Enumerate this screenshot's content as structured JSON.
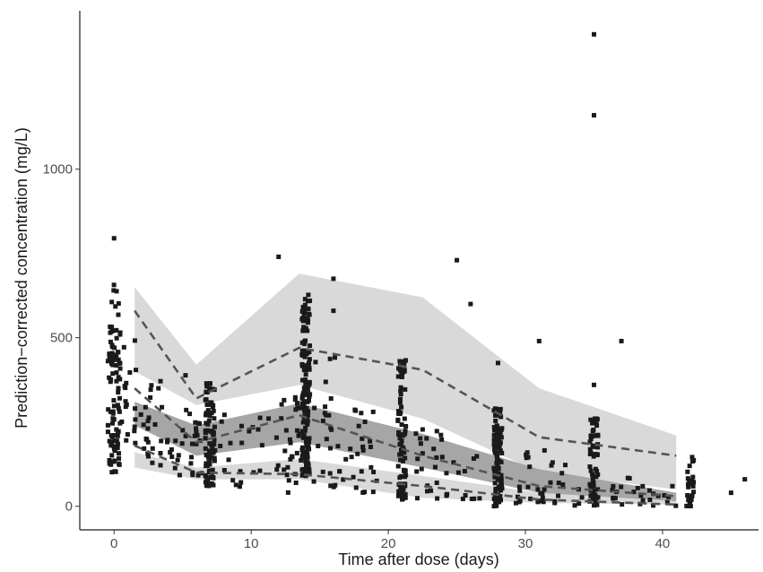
{
  "chart_data": {
    "type": "scatter",
    "xlabel": "Time after dose (days)",
    "ylabel": "Prediction−corrected concentration (mg/L)",
    "xlim": [
      -2.5,
      47
    ],
    "ylim": [
      -70,
      1470
    ],
    "x_ticks": [
      0,
      10,
      20,
      30,
      40
    ],
    "y_ticks": [
      0,
      500,
      1000
    ],
    "grid": false,
    "legend": "none",
    "colors": {
      "points": "#1a1a1a",
      "outer_band": "#d9d9d9",
      "median_band": "#a6a6a6",
      "lines": "#555555"
    },
    "bins_x": [
      1.5,
      6,
      13.5,
      22.5,
      31,
      41
    ],
    "bands": {
      "upper_ci": {
        "low": [
          400,
          300,
          360,
          260,
          100,
          50
        ],
        "high": [
          650,
          420,
          690,
          620,
          350,
          210
        ]
      },
      "median_ci": {
        "low": [
          240,
          150,
          190,
          115,
          40,
          15
        ],
        "high": [
          310,
          240,
          305,
          215,
          110,
          40
        ]
      },
      "lower_ci": {
        "low": [
          115,
          80,
          80,
          25,
          10,
          5
        ],
        "high": [
          160,
          115,
          140,
          90,
          40,
          25
        ]
      }
    },
    "observed_percentiles": {
      "p95": [
        580,
        320,
        470,
        405,
        205,
        150
      ],
      "p50": [
        350,
        190,
        270,
        150,
        60,
        30
      ],
      "p05": [
        180,
        100,
        95,
        60,
        20,
        5
      ]
    },
    "outliers": [
      [
        0,
        795
      ],
      [
        12,
        740
      ],
      [
        16,
        675
      ],
      [
        16,
        580
      ],
      [
        25,
        730
      ],
      [
        26,
        600
      ],
      [
        28,
        425
      ],
      [
        31,
        490
      ],
      [
        35,
        1400
      ],
      [
        35,
        1160
      ],
      [
        35,
        360
      ],
      [
        37,
        490
      ],
      [
        45,
        40
      ],
      [
        46,
        80
      ]
    ],
    "clusters": [
      {
        "x": 0,
        "count": 95,
        "lo": 100,
        "hi": 660,
        "spread": 0.45
      },
      {
        "x": 1,
        "count": 18,
        "lo": 190,
        "hi": 520,
        "spread": 0.6
      },
      {
        "x": 2,
        "count": 12,
        "lo": 170,
        "hi": 310,
        "spread": 0.6
      },
      {
        "x": 3,
        "count": 12,
        "lo": 120,
        "hi": 440,
        "spread": 0.6
      },
      {
        "x": 4,
        "count": 10,
        "lo": 90,
        "hi": 230,
        "spread": 0.8
      },
      {
        "x": 5,
        "count": 8,
        "lo": 90,
        "hi": 400,
        "spread": 0.6
      },
      {
        "x": 6,
        "count": 16,
        "lo": 90,
        "hi": 250,
        "spread": 0.4
      },
      {
        "x": 7,
        "count": 85,
        "lo": 60,
        "hi": 380,
        "spread": 0.35
      },
      {
        "x": 8.5,
        "count": 14,
        "lo": 50,
        "hi": 300,
        "spread": 1.2
      },
      {
        "x": 11,
        "count": 12,
        "lo": 80,
        "hi": 290,
        "spread": 1.2
      },
      {
        "x": 13,
        "count": 30,
        "lo": 40,
        "hi": 330,
        "spread": 0.8
      },
      {
        "x": 14,
        "count": 150,
        "lo": 90,
        "hi": 630,
        "spread": 0.3
      },
      {
        "x": 15.5,
        "count": 25,
        "lo": 50,
        "hi": 460,
        "spread": 1.0
      },
      {
        "x": 18,
        "count": 25,
        "lo": 40,
        "hi": 310,
        "spread": 1.3
      },
      {
        "x": 21,
        "count": 85,
        "lo": 20,
        "hi": 450,
        "spread": 0.3
      },
      {
        "x": 23,
        "count": 22,
        "lo": 20,
        "hi": 250,
        "spread": 1.0
      },
      {
        "x": 25.5,
        "count": 14,
        "lo": 20,
        "hi": 160,
        "spread": 1.3
      },
      {
        "x": 28,
        "count": 120,
        "lo": 0,
        "hi": 290,
        "spread": 0.3
      },
      {
        "x": 30.5,
        "count": 22,
        "lo": 0,
        "hi": 170,
        "spread": 1.2
      },
      {
        "x": 33,
        "count": 14,
        "lo": 0,
        "hi": 140,
        "spread": 1.2
      },
      {
        "x": 35,
        "count": 65,
        "lo": 0,
        "hi": 270,
        "spread": 0.3
      },
      {
        "x": 37.5,
        "count": 16,
        "lo": 0,
        "hi": 90,
        "spread": 1.2
      },
      {
        "x": 40,
        "count": 10,
        "lo": 0,
        "hi": 70,
        "spread": 1.0
      },
      {
        "x": 42,
        "count": 32,
        "lo": 0,
        "hi": 150,
        "spread": 0.3
      }
    ]
  }
}
